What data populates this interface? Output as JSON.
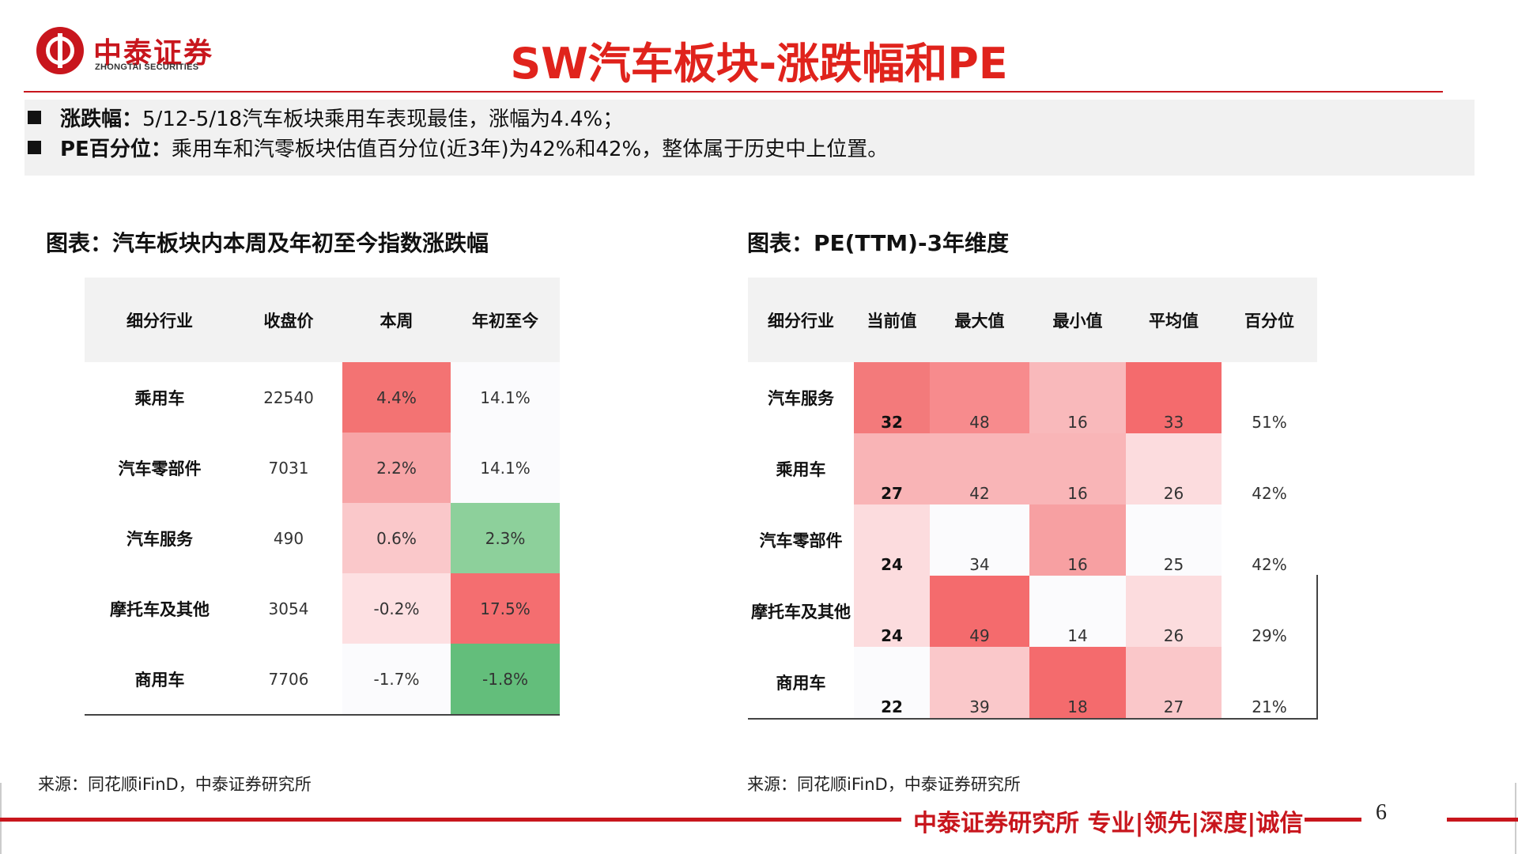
{
  "logo": {
    "name_cn": "中泰证券",
    "name_en": "ZHONGTAI SECURITIES"
  },
  "title": "SW汽车板块-涨跌幅和PE",
  "summary": [
    {
      "key": "涨跌幅：",
      "text": "5/12-5/18汽车板块乘用车表现最佳，涨幅为4.4%；"
    },
    {
      "key": "PE百分位：",
      "text": "乘用车和汽零板块估值百分位(近3年)为42%和42%，整体属于历史中上位置。"
    }
  ],
  "left_chart": {
    "title": "图表：汽车板块内本周及年初至今指数涨跌幅",
    "headers": [
      "细分行业",
      "收盘价",
      "本周",
      "年初至今"
    ],
    "rows": [
      {
        "name": "乘用车",
        "close": "22540",
        "week": "4.4%",
        "ytd": "14.1%"
      },
      {
        "name": "汽车零部件",
        "close": "7031",
        "week": "2.2%",
        "ytd": "14.1%"
      },
      {
        "name": "汽车服务",
        "close": "490",
        "week": "0.6%",
        "ytd": "2.3%"
      },
      {
        "name": "摩托车及其他",
        "close": "3054",
        "week": "-0.2%",
        "ytd": "17.5%"
      },
      {
        "name": "商用车",
        "close": "7706",
        "week": "-1.7%",
        "ytd": "-1.8%"
      }
    ],
    "week_colors": [
      "#f37373",
      "#f7a4a6",
      "#fac8ca",
      "#fde0e2",
      "#fbfbfd"
    ],
    "ytd_colors": [
      "#fbfbfd",
      "#fbfbfd",
      "#8dd09b",
      "#f46e70",
      "#63be7b"
    ],
    "source": "来源：同花顺iFinD，中泰证券研究所"
  },
  "right_chart": {
    "title": "图表：PE(TTM)-3年维度",
    "headers": [
      "细分行业",
      "当前值",
      "最大值",
      "最小值",
      "平均值",
      "百分位"
    ],
    "rows": [
      {
        "name": "汽车服务",
        "cur": "32",
        "max": "48",
        "min": "16",
        "avg": "33",
        "pct": "51%"
      },
      {
        "name": "乘用车",
        "cur": "27",
        "max": "42",
        "min": "16",
        "avg": "26",
        "pct": "42%"
      },
      {
        "name": "汽车零部件",
        "cur": "24",
        "max": "34",
        "min": "16",
        "avg": "25",
        "pct": "42%"
      },
      {
        "name": "摩托车及其他",
        "cur": "24",
        "max": "49",
        "min": "14",
        "avg": "26",
        "pct": "29%"
      },
      {
        "name": "商用车",
        "cur": "22",
        "max": "39",
        "min": "18",
        "avg": "27",
        "pct": "21%"
      }
    ],
    "cur_colors": [
      "#f37a7b",
      "#f9b4b6",
      "#fcdcde",
      "#fcdcde",
      "#fbfbfd"
    ],
    "max_colors": [
      "#f78b8d",
      "#f9b5b7",
      "#fbfbfd",
      "#f46b6d",
      "#fac8ca"
    ],
    "min_colors": [
      "#f9b9bb",
      "#f9b5b7",
      "#f7a0a2",
      "#fbfbfd",
      "#f46b6d"
    ],
    "avg_colors": [
      "#f46b6d",
      "#fcdcde",
      "#fbfbfd",
      "#fcdcde",
      "#fac7c9"
    ],
    "source": "来源：同花顺iFinD，中泰证券研究所"
  },
  "footer": {
    "text": "中泰证券研究所 专业|领先|深度|诚信",
    "page": "6"
  }
}
